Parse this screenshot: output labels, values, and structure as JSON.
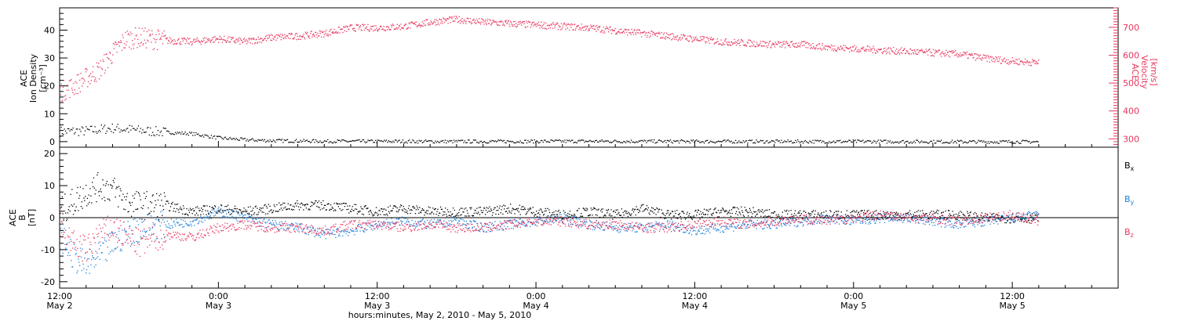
{
  "chart_data": [
    {
      "type": "scatter",
      "panel": "top",
      "ylabel": [
        "ACE",
        "Ion Density",
        "[cm⁻³]"
      ],
      "ylabel_right": [
        "ACE",
        "Velocity",
        "[km/s]"
      ],
      "ylim": [
        -2,
        48
      ],
      "ylim_right": [
        270,
        770
      ],
      "yticks": [
        0,
        10,
        20,
        30,
        40
      ],
      "yticks_right": [
        300,
        400,
        500,
        600,
        700
      ],
      "xlim": [
        0,
        80
      ],
      "series": [
        {
          "axis": "left",
          "color": "#000000",
          "points": [
            [
              0,
              3.8
            ],
            [
              2,
              4
            ],
            [
              4,
              5
            ],
            [
              6,
              4.2
            ],
            [
              8,
              3.5
            ],
            [
              10,
              3
            ],
            [
              12,
              1.5
            ],
            [
              14,
              0.8
            ],
            [
              16,
              0.5
            ],
            [
              20,
              0.3
            ],
            [
              30,
              0.2
            ],
            [
              40,
              0.3
            ],
            [
              50,
              0.2
            ],
            [
              60,
              0.2
            ],
            [
              70,
              0.1
            ],
            [
              74,
              0.1
            ]
          ]
        },
        {
          "axis": "right",
          "color": "#e8365e",
          "points": [
            [
              0,
              470
            ],
            [
              1,
              490
            ],
            [
              2,
              520
            ],
            [
              3,
              550
            ],
            [
              4,
              610
            ],
            [
              5,
              660
            ],
            [
              6,
              665
            ],
            [
              8,
              655
            ],
            [
              10,
              650
            ],
            [
              12,
              660
            ],
            [
              14,
              650
            ],
            [
              16,
              665
            ],
            [
              18,
              670
            ],
            [
              20,
              680
            ],
            [
              22,
              700
            ],
            [
              24,
              700
            ],
            [
              26,
              705
            ],
            [
              28,
              720
            ],
            [
              30,
              730
            ],
            [
              32,
              720
            ],
            [
              34,
              715
            ],
            [
              36,
              710
            ],
            [
              38,
              705
            ],
            [
              40,
              700
            ],
            [
              42,
              690
            ],
            [
              44,
              680
            ],
            [
              46,
              670
            ],
            [
              48,
              660
            ],
            [
              50,
              650
            ],
            [
              52,
              645
            ],
            [
              54,
              640
            ],
            [
              56,
              640
            ],
            [
              58,
              630
            ],
            [
              60,
              625
            ],
            [
              62,
              620
            ],
            [
              64,
              615
            ],
            [
              66,
              610
            ],
            [
              68,
              605
            ],
            [
              70,
              590
            ],
            [
              72,
              580
            ],
            [
              74,
              575
            ]
          ]
        }
      ]
    },
    {
      "type": "scatter",
      "panel": "bottom",
      "ylabel": [
        "ACE",
        "B",
        "[nT]"
      ],
      "ylim": [
        -22,
        22
      ],
      "yticks": [
        -20,
        -10,
        0,
        10,
        20
      ],
      "xlim": [
        0,
        80
      ],
      "series": [
        {
          "name": "Bx",
          "color": "#000000",
          "points": [
            [
              0,
              2
            ],
            [
              1,
              5
            ],
            [
              2,
              8
            ],
            [
              3,
              10
            ],
            [
              4,
              9
            ],
            [
              5,
              5
            ],
            [
              6,
              4
            ],
            [
              8,
              4
            ],
            [
              10,
              2
            ],
            [
              12,
              3
            ],
            [
              14,
              2
            ],
            [
              16,
              3
            ],
            [
              18,
              4
            ],
            [
              20,
              4
            ],
            [
              22,
              3
            ],
            [
              24,
              2
            ],
            [
              26,
              3
            ],
            [
              28,
              2
            ],
            [
              30,
              2
            ],
            [
              32,
              2
            ],
            [
              34,
              3
            ],
            [
              36,
              2
            ],
            [
              38,
              1
            ],
            [
              40,
              2
            ],
            [
              42,
              1
            ],
            [
              44,
              3
            ],
            [
              46,
              1
            ],
            [
              48,
              1
            ],
            [
              50,
              2
            ],
            [
              52,
              2
            ],
            [
              54,
              1
            ],
            [
              56,
              1
            ],
            [
              58,
              1
            ],
            [
              60,
              1
            ],
            [
              62,
              1
            ],
            [
              64,
              1
            ],
            [
              66,
              1
            ],
            [
              68,
              1
            ],
            [
              70,
              0
            ],
            [
              72,
              0
            ],
            [
              74,
              0
            ]
          ]
        },
        {
          "name": "By",
          "color": "#1a7fdc",
          "points": [
            [
              0,
              -5
            ],
            [
              1,
              -12
            ],
            [
              2,
              -15
            ],
            [
              3,
              -12
            ],
            [
              4,
              -8
            ],
            [
              5,
              -5
            ],
            [
              6,
              -3
            ],
            [
              8,
              -2
            ],
            [
              10,
              -1
            ],
            [
              12,
              2
            ],
            [
              14,
              0
            ],
            [
              16,
              -2
            ],
            [
              18,
              -3
            ],
            [
              20,
              -5
            ],
            [
              22,
              -4
            ],
            [
              24,
              -2
            ],
            [
              26,
              -1
            ],
            [
              28,
              -2
            ],
            [
              30,
              -1
            ],
            [
              32,
              -3
            ],
            [
              34,
              -2
            ],
            [
              36,
              -1
            ],
            [
              38,
              0
            ],
            [
              40,
              -2
            ],
            [
              42,
              -3
            ],
            [
              44,
              -3
            ],
            [
              46,
              -2
            ],
            [
              48,
              -4
            ],
            [
              50,
              -3
            ],
            [
              52,
              -2
            ],
            [
              54,
              -2
            ],
            [
              56,
              -1
            ],
            [
              58,
              0
            ],
            [
              60,
              -1
            ],
            [
              62,
              0
            ],
            [
              64,
              0
            ],
            [
              66,
              -1
            ],
            [
              68,
              -2
            ],
            [
              70,
              -1
            ],
            [
              72,
              0
            ],
            [
              74,
              1
            ]
          ]
        },
        {
          "name": "Bz",
          "color": "#e8365e",
          "points": [
            [
              0,
              -2
            ],
            [
              1,
              -8
            ],
            [
              2,
              -10
            ],
            [
              3,
              -5
            ],
            [
              4,
              -3
            ],
            [
              5,
              -6
            ],
            [
              6,
              -8
            ],
            [
              8,
              -5
            ],
            [
              10,
              -6
            ],
            [
              12,
              -3
            ],
            [
              14,
              -2
            ],
            [
              16,
              -3
            ],
            [
              18,
              -3
            ],
            [
              20,
              -4
            ],
            [
              22,
              -2
            ],
            [
              24,
              -2
            ],
            [
              26,
              -3
            ],
            [
              28,
              -2
            ],
            [
              30,
              -3
            ],
            [
              32,
              -3
            ],
            [
              34,
              -2
            ],
            [
              36,
              -1
            ],
            [
              38,
              -1
            ],
            [
              40,
              -2
            ],
            [
              42,
              -2
            ],
            [
              44,
              -3
            ],
            [
              46,
              -3
            ],
            [
              48,
              -2
            ],
            [
              50,
              -1
            ],
            [
              52,
              -2
            ],
            [
              54,
              -1
            ],
            [
              56,
              0
            ],
            [
              58,
              -1
            ],
            [
              60,
              0
            ],
            [
              62,
              1
            ],
            [
              64,
              0
            ],
            [
              66,
              0
            ],
            [
              68,
              -1
            ],
            [
              70,
              0
            ],
            [
              72,
              1
            ],
            [
              74,
              -1
            ]
          ]
        }
      ],
      "legend": [
        "Bx",
        "By",
        "Bz"
      ],
      "legend_placement": "right"
    }
  ],
  "x_axis": {
    "label": "hours:minutes, May  2, 2010 - May  5, 2010",
    "ticks": [
      {
        "x": 0,
        "time": "12:00",
        "day": "May 2"
      },
      {
        "x": 12,
        "time": "0:00",
        "day": "May 3"
      },
      {
        "x": 24,
        "time": "12:00",
        "day": "May 3"
      },
      {
        "x": 36,
        "time": "0:00",
        "day": "May 4"
      },
      {
        "x": 48,
        "time": "12:00",
        "day": "May 4"
      },
      {
        "x": 60,
        "time": "0:00",
        "day": "May 5"
      },
      {
        "x": 72,
        "time": "12:00",
        "day": "May 5"
      }
    ]
  }
}
